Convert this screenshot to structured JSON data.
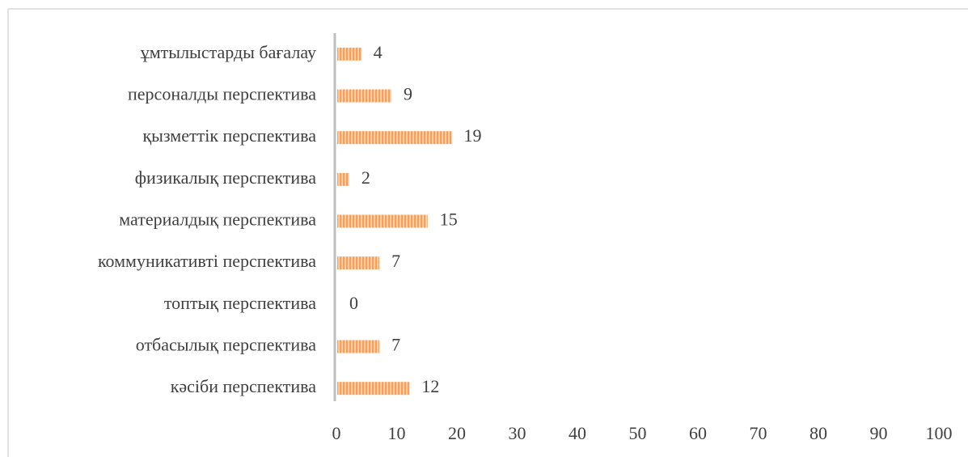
{
  "chart_data": {
    "type": "bar",
    "orientation": "horizontal",
    "categories": [
      "ұмтылыстарды бағалау",
      "персоналды перспектива",
      "қызметтік перспектива",
      "физикалық перспектива",
      "материалдық перспектива",
      "коммуникативті перспектива",
      "топтық перспектива",
      "отбасылық перспектива",
      "кәсіби перспектива"
    ],
    "values": [
      4,
      9,
      19,
      2,
      15,
      7,
      0,
      7,
      12
    ],
    "color": "#f4a15d",
    "xlim": [
      0,
      100
    ],
    "xticks": [
      0,
      10,
      20,
      30,
      40,
      50,
      60,
      70,
      80,
      90,
      100
    ],
    "grid": false,
    "data_labels": true
  }
}
